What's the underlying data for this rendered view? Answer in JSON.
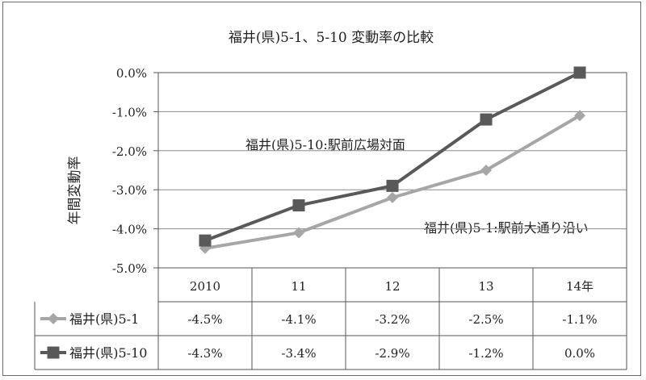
{
  "chart_data": {
    "type": "line",
    "title": "福井(県)5-1、5-10 変動率の比較",
    "ylabel": "年間変動率",
    "xlabel": "",
    "ylim": [
      -5.0,
      0.0
    ],
    "yticks": [
      "0.0%",
      "-1.0%",
      "-2.0%",
      "-3.0%",
      "-4.0%",
      "-5.0%"
    ],
    "ytick_values": [
      0,
      -1,
      -2,
      -3,
      -4,
      -5
    ],
    "categories": [
      "2010",
      "11",
      "12",
      "13",
      "14年"
    ],
    "grid": true,
    "legend": "data-table",
    "series": [
      {
        "name": "福井(県)5-1",
        "values": [
          -4.5,
          -4.1,
          -3.2,
          -2.5,
          -1.1
        ],
        "labels": [
          "-4.5%",
          "-4.1%",
          "-3.2%",
          "-2.5%",
          "-1.1%"
        ],
        "color": "#a6a6a6",
        "marker": "diamond"
      },
      {
        "name": "福井(県)5-10",
        "values": [
          -4.3,
          -3.4,
          -2.9,
          -1.2,
          0.0
        ],
        "labels": [
          "-4.3%",
          "-3.4%",
          "-2.9%",
          "-1.2%",
          "0.0%"
        ],
        "color": "#595959",
        "marker": "square"
      }
    ],
    "annotations": [
      "福井(県)5-10:駅前広場対面",
      "福井(県)5-1:駅前大通り沿い"
    ]
  }
}
